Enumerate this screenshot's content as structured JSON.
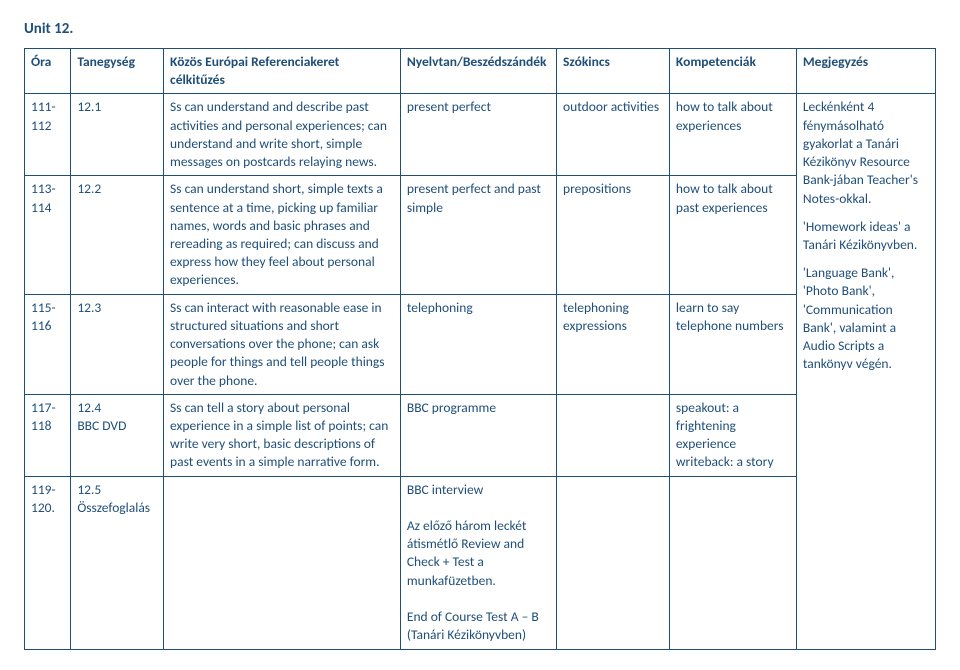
{
  "colors": {
    "text": "#1f4e79",
    "border": "#1f4e79",
    "background": "#ffffff"
  },
  "typography": {
    "family": "Calibri",
    "body_pt": 11,
    "header_pt": 11,
    "bold_headers": true
  },
  "unit_title": "Unit 12.",
  "columns": [
    {
      "key": "ora",
      "label": "Óra"
    },
    {
      "key": "tan",
      "label": "Tanegység"
    },
    {
      "key": "cel",
      "label": "Közös Európai Referenciakeret célkitűzés"
    },
    {
      "key": "nyelv",
      "label": "Nyelvtan/Beszédszándék"
    },
    {
      "key": "szo",
      "label": "Szókincs"
    },
    {
      "key": "komp",
      "label": "Kompetenciák"
    },
    {
      "key": "meg",
      "label": "Megjegyzés"
    }
  ],
  "rows": [
    {
      "ora": "111-112",
      "tan": "12.1",
      "cel": "Ss can understand and describe past activities and personal experiences; can understand and write short, simple messages on postcards relaying news.",
      "nyelv": "present perfect",
      "szo": "outdoor activities",
      "komp": "how to talk about experiences"
    },
    {
      "ora": "113-114",
      "tan": "12.2",
      "cel": "Ss can understand short, simple texts a sentence at a time, picking up familiar names, words and basic phrases and rereading as required; can discuss and express how they feel about personal experiences.",
      "nyelv": "present perfect and past simple",
      "szo": "prepositions",
      "komp": "how to talk about past experiences"
    },
    {
      "ora": "115-116",
      "tan": "12.3",
      "cel": "Ss can interact with reasonable ease in structured situations and short conversations over the phone; can ask people for things and tell people things over the phone.",
      "nyelv": "telephoning",
      "szo": "telephoning expressions",
      "komp": "learn to say telephone numbers"
    },
    {
      "ora": "117-118",
      "tan": "12.4\nBBC DVD",
      "cel": "Ss can tell a story about personal experience in a simple list of points; can write very short, basic descriptions of past events in a simple narrative form.",
      "nyelv": "BBC programme",
      "szo": "",
      "komp": "speakout: a frightening experience\nwriteback: a story"
    },
    {
      "ora": "119-120.",
      "tan": "12.5\nÖsszefoglalás",
      "cel": "",
      "nyelv": "BBC interview\n\nAz előző három leckét átismétlő Review and Check + Test a munkafüzetben.\n\nEnd of Course Test A – B (Tanári Kézikönyvben)",
      "szo": "",
      "komp": ""
    }
  ],
  "notes": {
    "paragraphs": [
      "Leckénként 4 fénymásolható gyakorlat a Tanári Kézikönyv Resource Bank-jában Teacher's Notes-okkal.",
      "'Homework ideas' a Tanári Kézikönyvben.",
      "'Language Bank', 'Photo Bank', 'Communication Bank', valamint a Audio Scripts a tankönyv végén."
    ],
    "rowspan": 5
  }
}
